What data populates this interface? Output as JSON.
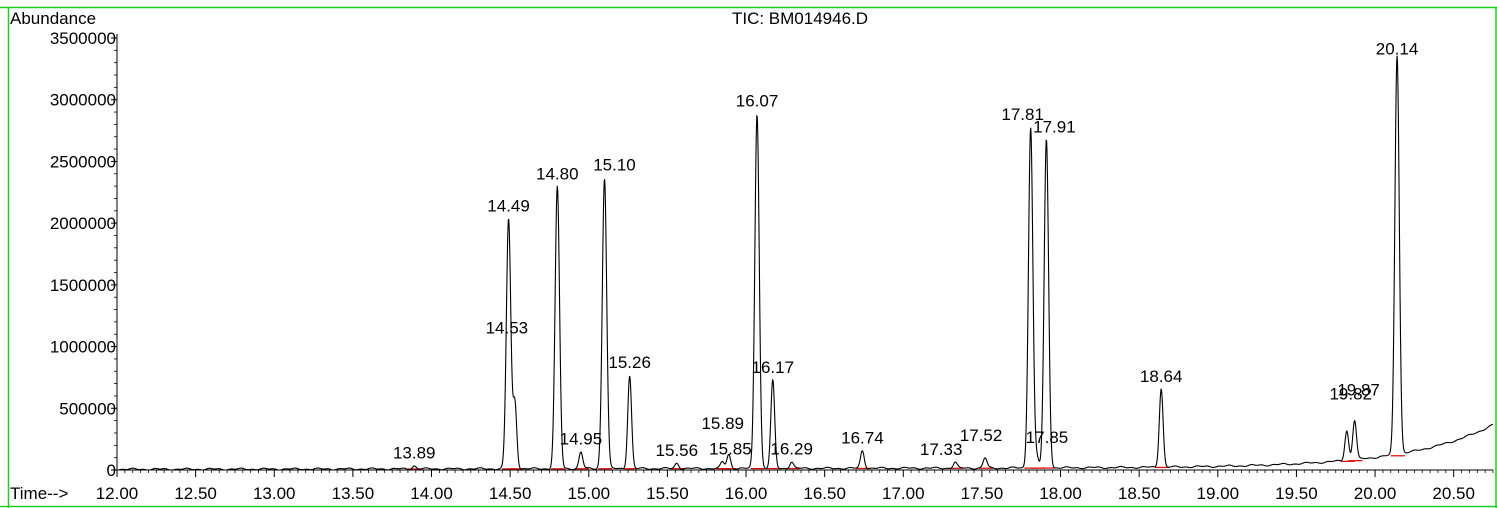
{
  "chart_data": {
    "type": "line",
    "title": "TIC: BM014946.D",
    "xlabel": "Time-->",
    "ylabel": "Abundance",
    "xlim": [
      12.0,
      20.75
    ],
    "ylim": [
      0,
      3500000
    ],
    "grid": false,
    "x_ticks": [
      "12.00",
      "12.50",
      "13.00",
      "13.50",
      "14.00",
      "14.50",
      "15.00",
      "15.50",
      "16.00",
      "16.50",
      "17.00",
      "17.50",
      "18.00",
      "18.50",
      "19.00",
      "19.50",
      "20.00",
      "20.50"
    ],
    "y_ticks": [
      "0",
      "500000",
      "1000000",
      "1500000",
      "2000000",
      "2500000",
      "3000000",
      "3500000"
    ],
    "peaks": [
      {
        "label": "13.89",
        "x": 13.89,
        "y": 30000
      },
      {
        "label": "14.49",
        "x": 14.49,
        "y": 2030000
      },
      {
        "label": "14.53",
        "x": 14.53,
        "y": 540000
      },
      {
        "label": "14.80",
        "x": 14.8,
        "y": 2290000
      },
      {
        "label": "14.95",
        "x": 14.95,
        "y": 140000
      },
      {
        "label": "15.10",
        "x": 15.1,
        "y": 2360000
      },
      {
        "label": "15.26",
        "x": 15.26,
        "y": 760000
      },
      {
        "label": "15.56",
        "x": 15.56,
        "y": 50000
      },
      {
        "label": "15.85",
        "x": 15.85,
        "y": 60000
      },
      {
        "label": "15.89",
        "x": 15.89,
        "y": 120000
      },
      {
        "label": "16.07",
        "x": 16.07,
        "y": 2880000
      },
      {
        "label": "16.17",
        "x": 16.17,
        "y": 720000
      },
      {
        "label": "16.29",
        "x": 16.29,
        "y": 60000
      },
      {
        "label": "16.74",
        "x": 16.74,
        "y": 150000
      },
      {
        "label": "17.33",
        "x": 17.33,
        "y": 55000
      },
      {
        "label": "17.52",
        "x": 17.52,
        "y": 90000
      },
      {
        "label": "17.81",
        "x": 17.81,
        "y": 2770000
      },
      {
        "label": "17.85",
        "x": 17.85,
        "y": 90000
      },
      {
        "label": "17.91",
        "x": 17.91,
        "y": 2670000
      },
      {
        "label": "18.64",
        "x": 18.64,
        "y": 650000
      },
      {
        "label": "19.82",
        "x": 19.82,
        "y": 280000
      },
      {
        "label": "19.87",
        "x": 19.87,
        "y": 360000
      },
      {
        "label": "20.14",
        "x": 20.14,
        "y": 3300000
      }
    ]
  }
}
